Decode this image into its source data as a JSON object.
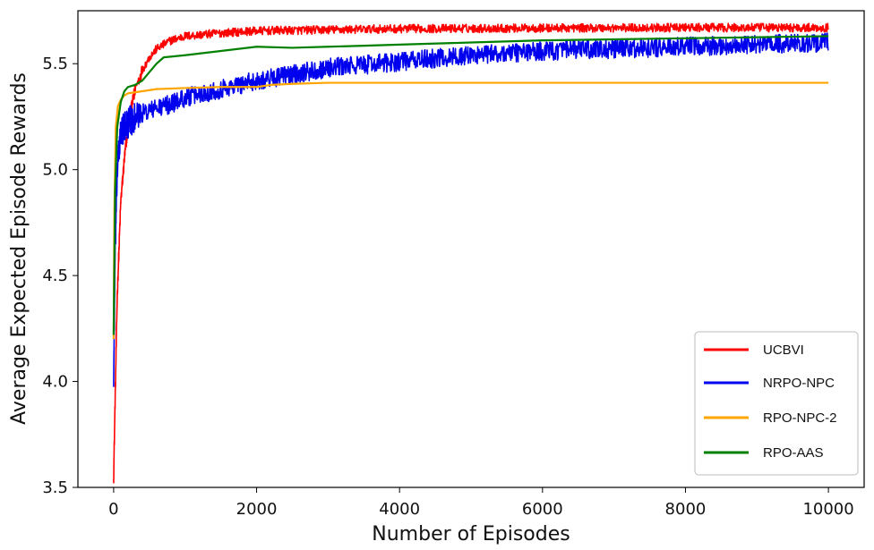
{
  "chart_data": {
    "type": "line",
    "title": "",
    "xlabel": "Number of Episodes",
    "ylabel": "Average Expected Episode Rewards",
    "xlim": [
      -500,
      10500
    ],
    "ylim": [
      3.5,
      5.75
    ],
    "xticks": [
      0,
      2000,
      4000,
      6000,
      8000,
      10000
    ],
    "xtick_labels": [
      "0",
      "2000",
      "4000",
      "6000",
      "8000",
      "10000"
    ],
    "yticks": [
      3.5,
      4.0,
      4.5,
      5.0,
      5.5
    ],
    "ytick_labels": [
      "3.5",
      "4.0",
      "4.5",
      "5.0",
      "5.5"
    ],
    "grid": false,
    "legend_position": "lower-right",
    "series": [
      {
        "name": "UCBVI",
        "color": "#ff0000",
        "x": [
          0,
          20,
          50,
          100,
          150,
          200,
          300,
          400,
          500,
          600,
          800,
          1000,
          1500,
          2000,
          3000,
          4000,
          6000,
          8000,
          10000
        ],
        "y": [
          3.55,
          3.9,
          4.4,
          4.85,
          5.05,
          5.2,
          5.38,
          5.47,
          5.53,
          5.57,
          5.61,
          5.63,
          5.645,
          5.655,
          5.66,
          5.665,
          5.668,
          5.67,
          5.67
        ],
        "noise": 0.02
      },
      {
        "name": "NRPO-NPC",
        "color": "#0000ee",
        "x": [
          0,
          20,
          50,
          100,
          200,
          300,
          500,
          800,
          1000,
          1500,
          2000,
          2500,
          3000,
          4000,
          5000,
          6000,
          7000,
          8000,
          9000,
          10000
        ],
        "y": [
          4.0,
          4.6,
          5.0,
          5.18,
          5.22,
          5.25,
          5.28,
          5.31,
          5.34,
          5.38,
          5.42,
          5.45,
          5.48,
          5.51,
          5.54,
          5.56,
          5.57,
          5.58,
          5.59,
          5.6
        ],
        "noise": 0.045
      },
      {
        "name": "RPO-NPC-2",
        "color": "#ffa500",
        "x": [
          0,
          10,
          30,
          60,
          100,
          150,
          200,
          400,
          600,
          1000,
          1500,
          2000,
          2200,
          2500,
          3000,
          4000,
          6000,
          8000,
          10000
        ],
        "y": [
          4.2,
          4.8,
          5.2,
          5.3,
          5.33,
          5.35,
          5.36,
          5.37,
          5.38,
          5.385,
          5.39,
          5.39,
          5.4,
          5.405,
          5.41,
          5.41,
          5.41,
          5.41,
          5.41
        ],
        "noise": 0
      },
      {
        "name": "RPO-AAS",
        "color": "#008000",
        "x": [
          0,
          20,
          50,
          100,
          150,
          200,
          300,
          400,
          500,
          600,
          700,
          1000,
          1500,
          2000,
          2500,
          3000,
          3500,
          4000,
          5000,
          6000,
          7000,
          8000,
          9000,
          10000
        ],
        "y": [
          4.22,
          4.9,
          5.2,
          5.32,
          5.37,
          5.39,
          5.4,
          5.42,
          5.46,
          5.5,
          5.53,
          5.54,
          5.56,
          5.58,
          5.575,
          5.58,
          5.585,
          5.59,
          5.6,
          5.61,
          5.615,
          5.62,
          5.625,
          5.63
        ],
        "noise": 0
      }
    ]
  }
}
